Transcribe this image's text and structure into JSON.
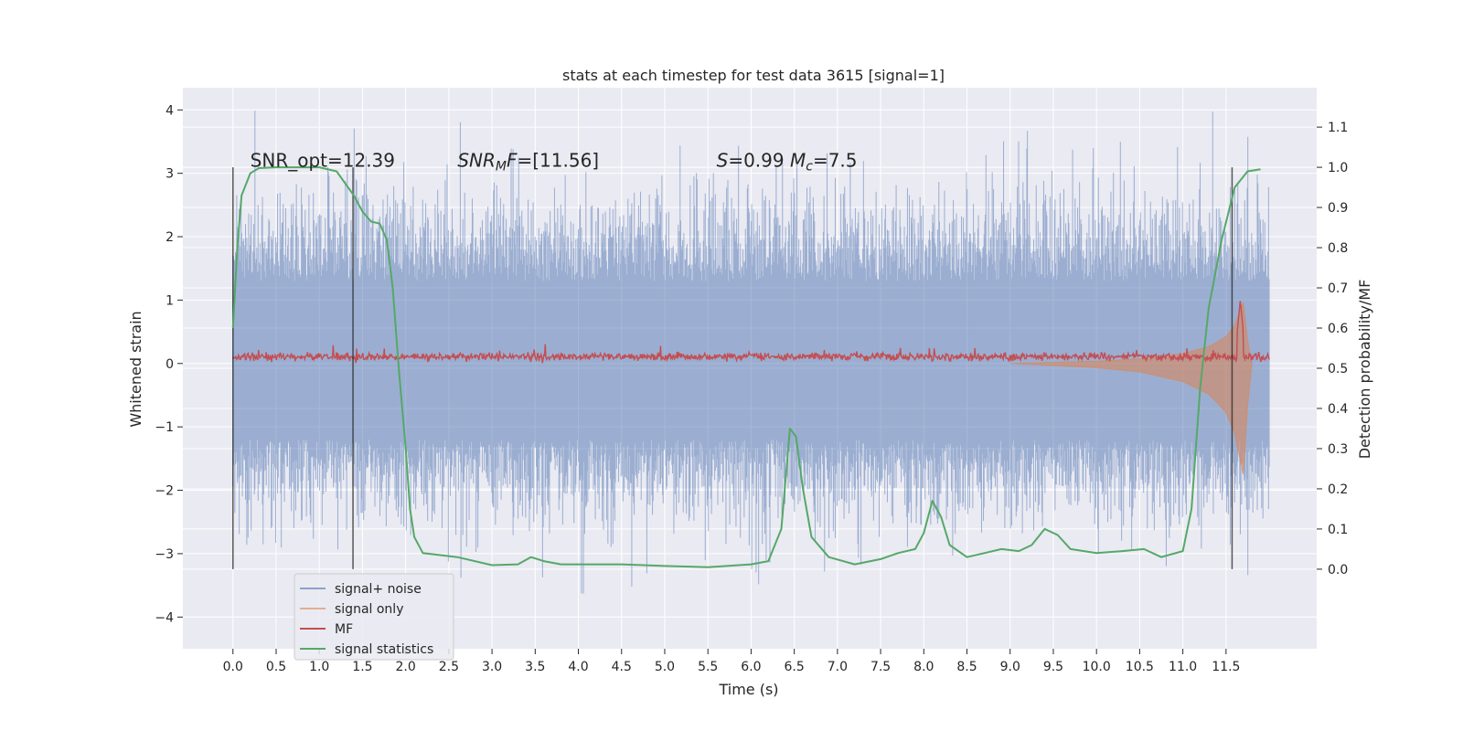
{
  "chart_data": {
    "type": "line",
    "title": "stats at each timestep for test data 3615 [signal=1]",
    "xlabel": "Time (s)",
    "ylabel": "Whitened strain",
    "y2label": "Detection probability/MF",
    "xlim": [
      -0.58,
      12.55
    ],
    "ylim": [
      -4.5,
      4.35
    ],
    "y2lim": [
      -0.198,
      1.198
    ],
    "xticks": [
      "0.0",
      "0.5",
      "1.0",
      "1.5",
      "2.0",
      "2.5",
      "3.0",
      "3.5",
      "4.0",
      "4.5",
      "5.0",
      "5.5",
      "6.0",
      "6.5",
      "7.0",
      "7.5",
      "8.0",
      "8.5",
      "9.0",
      "9.5",
      "10.0",
      "10.5",
      "11.0",
      "11.5"
    ],
    "yticks": [
      "4",
      "3",
      "2",
      "1",
      "0",
      "−1",
      "−2",
      "−3",
      "−4"
    ],
    "y2ticks": [
      "1.1",
      "1.0",
      "0.9",
      "0.8",
      "0.7",
      "0.6",
      "0.5",
      "0.4",
      "0.3",
      "0.2",
      "0.1",
      "0.0"
    ],
    "grid": true,
    "legend_position": "lower-left",
    "colors": {
      "background": "#eaeaf2",
      "grid": "#ffffff",
      "signal_noise": "#4c72b0",
      "signal_only": "#dd8452",
      "mf": "#c44e52",
      "signal_statistics": "#55a868",
      "marker_lines": "#262626"
    },
    "annotations": [
      {
        "text": "SNR_opt=12.39",
        "x": 0.2,
        "y": 3.1
      },
      {
        "text": "SNRMF=[11.56]",
        "x": 2.6,
        "y": 3.1
      },
      {
        "text": "S=0.99   Mc=7.5",
        "x": 5.6,
        "y": 3.1
      }
    ],
    "vertical_markers": [
      0.0,
      1.39,
      11.57
    ],
    "series": [
      {
        "name": "signal+ noise",
        "kind": "noise-band",
        "x_range": [
          0.0,
          12.0
        ],
        "typical_band": [
          -1.2,
          1.3
        ],
        "extremes": [
          -3.63,
          3.99
        ]
      },
      {
        "name": "signal only",
        "kind": "chirp",
        "points": [
          [
            9.0,
            0.0
          ],
          [
            10.0,
            0.03
          ],
          [
            10.5,
            0.06
          ],
          [
            11.0,
            0.13
          ],
          [
            11.3,
            0.22
          ],
          [
            11.5,
            0.35
          ],
          [
            11.6,
            0.5
          ],
          [
            11.7,
            0.8
          ],
          [
            11.75,
            0.3
          ],
          [
            11.8,
            0.0
          ]
        ]
      },
      {
        "name": "MF",
        "kind": "noise-band",
        "x_range": [
          0.0,
          12.0
        ],
        "typical_band": [
          0.03,
          0.2
        ],
        "extremes": [
          0.0,
          1.0
        ]
      },
      {
        "name": "signal statistics",
        "kind": "line",
        "axis": "right",
        "points": [
          [
            0.0,
            0.6
          ],
          [
            0.05,
            0.8
          ],
          [
            0.1,
            0.93
          ],
          [
            0.2,
            0.985
          ],
          [
            0.3,
            0.998
          ],
          [
            0.5,
            1.0
          ],
          [
            1.0,
            1.0
          ],
          [
            1.2,
            0.99
          ],
          [
            1.4,
            0.93
          ],
          [
            1.5,
            0.89
          ],
          [
            1.6,
            0.865
          ],
          [
            1.7,
            0.86
          ],
          [
            1.78,
            0.82
          ],
          [
            1.85,
            0.7
          ],
          [
            1.92,
            0.5
          ],
          [
            2.0,
            0.3
          ],
          [
            2.05,
            0.15
          ],
          [
            2.1,
            0.08
          ],
          [
            2.2,
            0.04
          ],
          [
            2.4,
            0.035
          ],
          [
            2.6,
            0.03
          ],
          [
            3.0,
            0.01
          ],
          [
            3.3,
            0.012
          ],
          [
            3.45,
            0.03
          ],
          [
            3.6,
            0.02
          ],
          [
            3.8,
            0.012
          ],
          [
            4.5,
            0.012
          ],
          [
            5.0,
            0.008
          ],
          [
            5.5,
            0.005
          ],
          [
            6.0,
            0.012
          ],
          [
            6.2,
            0.02
          ],
          [
            6.35,
            0.1
          ],
          [
            6.45,
            0.35
          ],
          [
            6.52,
            0.33
          ],
          [
            6.6,
            0.2
          ],
          [
            6.7,
            0.08
          ],
          [
            6.9,
            0.03
          ],
          [
            7.2,
            0.012
          ],
          [
            7.5,
            0.025
          ],
          [
            7.7,
            0.04
          ],
          [
            7.9,
            0.05
          ],
          [
            8.0,
            0.09
          ],
          [
            8.1,
            0.17
          ],
          [
            8.2,
            0.13
          ],
          [
            8.3,
            0.06
          ],
          [
            8.5,
            0.03
          ],
          [
            8.7,
            0.04
          ],
          [
            8.9,
            0.05
          ],
          [
            9.1,
            0.045
          ],
          [
            9.25,
            0.06
          ],
          [
            9.4,
            0.1
          ],
          [
            9.55,
            0.085
          ],
          [
            9.7,
            0.05
          ],
          [
            10.0,
            0.04
          ],
          [
            10.3,
            0.045
          ],
          [
            10.55,
            0.05
          ],
          [
            10.75,
            0.03
          ],
          [
            11.0,
            0.045
          ],
          [
            11.1,
            0.15
          ],
          [
            11.2,
            0.45
          ],
          [
            11.3,
            0.65
          ],
          [
            11.45,
            0.82
          ],
          [
            11.6,
            0.95
          ],
          [
            11.75,
            0.99
          ],
          [
            11.9,
            0.995
          ]
        ]
      }
    ]
  }
}
